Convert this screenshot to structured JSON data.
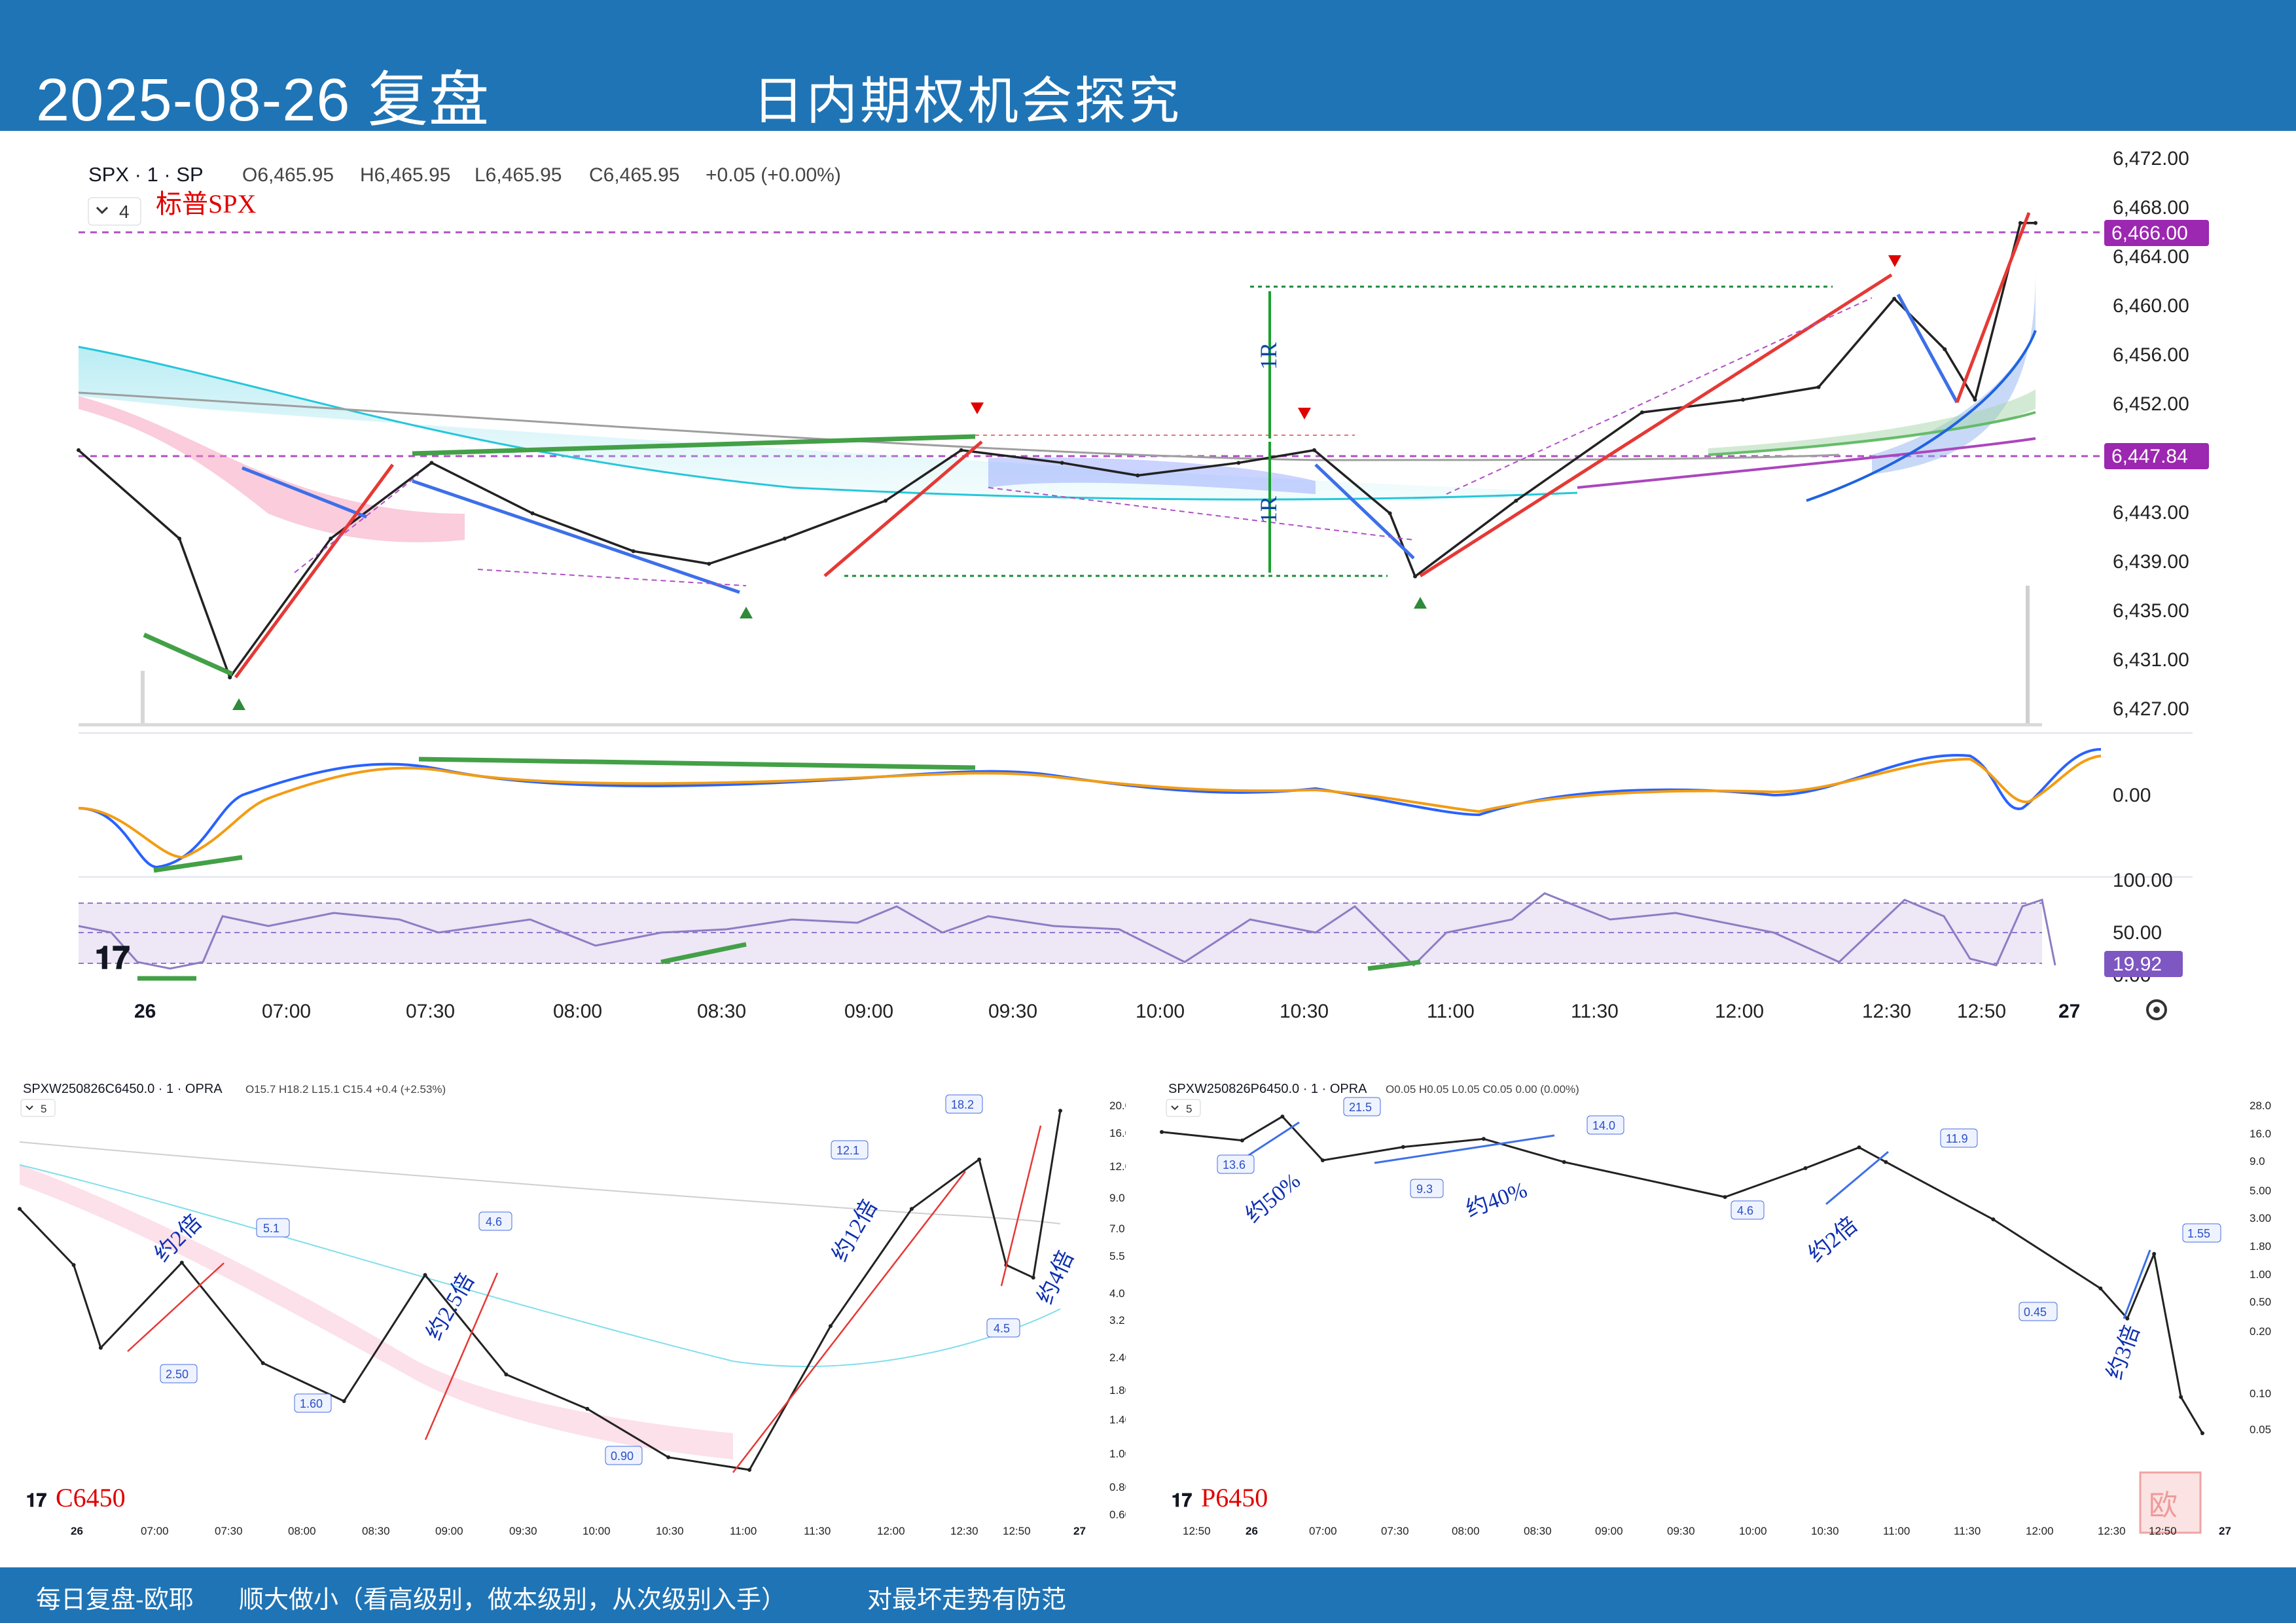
{
  "header": {
    "date": "2025-08-26 复盘",
    "subtitle": "日内期权机会探究"
  },
  "footer": {
    "left": "每日复盘-欧耶",
    "middle": "顺大做小（看高级别，做本级别，从次级别入手）",
    "right": "对最坏走势有防范"
  },
  "main_chart": {
    "symbol_line": "SPX · 1 · SP",
    "ohlc": {
      "o": "O6,465.95",
      "h": "H6,465.95",
      "l": "L6,465.95",
      "c": "C6,465.95",
      "chg": "+0.05 (+0.00%)"
    },
    "indicator_count": "4",
    "annotation_name": "标普SPX",
    "price_axis": [
      "6,472.00",
      "6,468.00",
      "6,464.00",
      "6,460.00",
      "6,456.00",
      "6,452.00",
      "6,443.00",
      "6,439.00",
      "6,435.00",
      "6,431.00",
      "6,427.00"
    ],
    "price_tags": [
      {
        "label": "6,466.00",
        "color": "#9c27b0"
      },
      {
        "label": "6,447.84",
        "color": "#9c27b0"
      }
    ],
    "time_axis": [
      "26",
      "07:00",
      "07:30",
      "08:00",
      "08:30",
      "09:00",
      "09:30",
      "10:00",
      "10:30",
      "11:00",
      "11:30",
      "12:00",
      "12:30",
      "12:50",
      "27"
    ],
    "risk_labels": [
      "1R",
      "1R"
    ],
    "macd_axis": "0.00",
    "rsi_axis": [
      "100.00",
      "50.00",
      "0.00"
    ],
    "rsi_value": "19.92"
  },
  "call_chart": {
    "title": "SPXW250826C6450.0 · 1 · OPRA",
    "ohlc": "O15.7 H18.2 L15.1 C15.4 +0.4 (+2.53%)",
    "indicator_count": "5",
    "name": "C6450",
    "y_axis": [
      "20.0",
      "16.0",
      "12.0",
      "9.0",
      "7.0",
      "5.5",
      "4.0",
      "3.2",
      "2.40",
      "1.80",
      "1.40",
      "1.00",
      "0.80",
      "0.60"
    ],
    "x_axis": [
      "26",
      "07:00",
      "07:30",
      "08:00",
      "08:30",
      "09:00",
      "09:30",
      "10:00",
      "10:30",
      "11:00",
      "11:30",
      "12:00",
      "12:30",
      "12:50",
      "27"
    ],
    "price_labels": [
      "2.50",
      "5.1",
      "1.60",
      "4.6",
      "0.90",
      "12.1",
      "18.2",
      "4.5"
    ],
    "multiples": [
      "约2倍",
      "约2.5倍",
      "约12倍",
      "约4倍"
    ]
  },
  "put_chart": {
    "title": "SPXW250826P6450.0 · 1 · OPRA",
    "ohlc": "O0.05 H0.05 L0.05 C0.05 0.00 (0.00%)",
    "indicator_count": "5",
    "name": "P6450",
    "y_axis": [
      "28.0",
      "16.0",
      "9.0",
      "5.00",
      "3.00",
      "1.80",
      "1.00",
      "0.50",
      "0.20",
      "0.10",
      "0.05"
    ],
    "x_axis": [
      "12:50",
      "26",
      "07:00",
      "07:30",
      "08:00",
      "08:30",
      "09:00",
      "09:30",
      "10:00",
      "10:30",
      "11:00",
      "11:30",
      "12:00",
      "12:30",
      "12:50",
      "27"
    ],
    "price_labels": [
      "13.6",
      "21.5",
      "9.3",
      "14.0",
      "4.6",
      "11.9",
      "0.45",
      "1.55"
    ],
    "multiples": [
      "约50%",
      "约40%",
      "约2倍",
      "约3倍"
    ]
  },
  "chart_data": [
    {
      "type": "line",
      "x": [
        "06:30",
        "06:50",
        "07:00",
        "07:20",
        "07:40",
        "08:00",
        "08:20",
        "08:35",
        "08:50",
        "09:10",
        "09:25",
        "09:45",
        "10:00",
        "10:20",
        "10:35",
        "10:50",
        "10:55",
        "11:15",
        "11:40",
        "12:00",
        "12:15",
        "12:30",
        "12:40",
        "12:46",
        "12:55",
        "12:58"
      ],
      "series": [
        {
          "values": [
            6448,
            6441,
            6430,
            6441,
            6447,
            6443,
            6440,
            6439,
            6441,
            6444,
            6448,
            6447,
            6446,
            6447,
            6448,
            6443,
            6438,
            6444,
            6451,
            6452,
            6453,
            6460,
            6456,
            6452,
            6466,
            6466
          ]
        }
      ],
      "ylim": [
        6427,
        6472
      ]
    },
    {
      "type": "line",
      "x": [
        "06:30",
        "06:50",
        "07:00",
        "07:30",
        "08:00",
        "08:30",
        "09:00",
        "09:30",
        "10:00",
        "10:30",
        "11:00",
        "11:30",
        "12:00",
        "12:25",
        "12:35",
        "12:45",
        "12:55"
      ],
      "series": [
        {
          "values": [
            8.0,
            5.0,
            2.5,
            5.1,
            2.2,
            1.6,
            4.6,
            2.0,
            1.5,
            1.0,
            0.9,
            3.0,
            8.0,
            12.1,
            5.0,
            4.5,
            18.2
          ]
        }
      ],
      "ylim": [
        0.6,
        20
      ]
    },
    {
      "type": "line",
      "x": [
        "06:30",
        "07:00",
        "07:15",
        "07:30",
        "08:00",
        "08:30",
        "09:00",
        "10:00",
        "10:30",
        "10:50",
        "11:00",
        "11:40",
        "12:20",
        "12:30",
        "12:40",
        "12:50",
        "12:58"
      ],
      "series": [
        {
          "values": [
            16.0,
            13.6,
            21.5,
            9.3,
            12.0,
            14.0,
            9.0,
            4.6,
            8.0,
            11.9,
            9.0,
            3.0,
            0.8,
            0.45,
            1.55,
            0.1,
            0.05
          ]
        }
      ],
      "ylim": [
        0.05,
        28
      ]
    }
  ]
}
